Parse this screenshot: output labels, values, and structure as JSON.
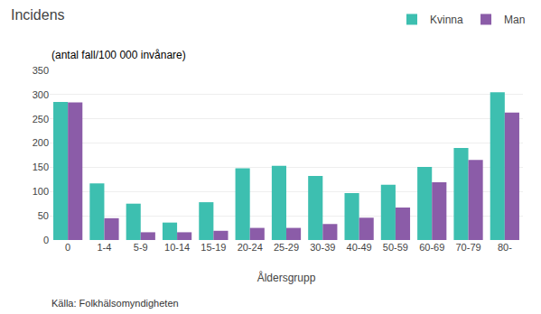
{
  "chart_data": {
    "type": "bar",
    "title": "Incidens",
    "subtitle": "(antal fall/100 000 invånare)",
    "xlabel": "Åldersgrupp",
    "categories": [
      "0",
      "1-4",
      "5-9",
      "10-14",
      "15-19",
      "20-24",
      "25-29",
      "30-39",
      "40-49",
      "50-59",
      "60-69",
      "70-79",
      "80-"
    ],
    "series": [
      {
        "name": "Kvinna",
        "color": "#3dbfb0",
        "values": [
          285,
          117,
          75,
          36,
          78,
          148,
          153,
          132,
          97,
          114,
          151,
          190,
          305
        ]
      },
      {
        "name": "Man",
        "color": "#8b5ca8",
        "values": [
          284,
          45,
          16,
          16,
          19,
          25,
          25,
          33,
          46,
          67,
          119,
          165,
          263
        ]
      }
    ],
    "ylim": [
      0,
      350
    ],
    "yticks": [
      0,
      50,
      100,
      150,
      200,
      250,
      300,
      350
    ],
    "grid": true,
    "legend": "top",
    "annotations": [
      "Källa: Folkhälsomyndigheten"
    ]
  }
}
